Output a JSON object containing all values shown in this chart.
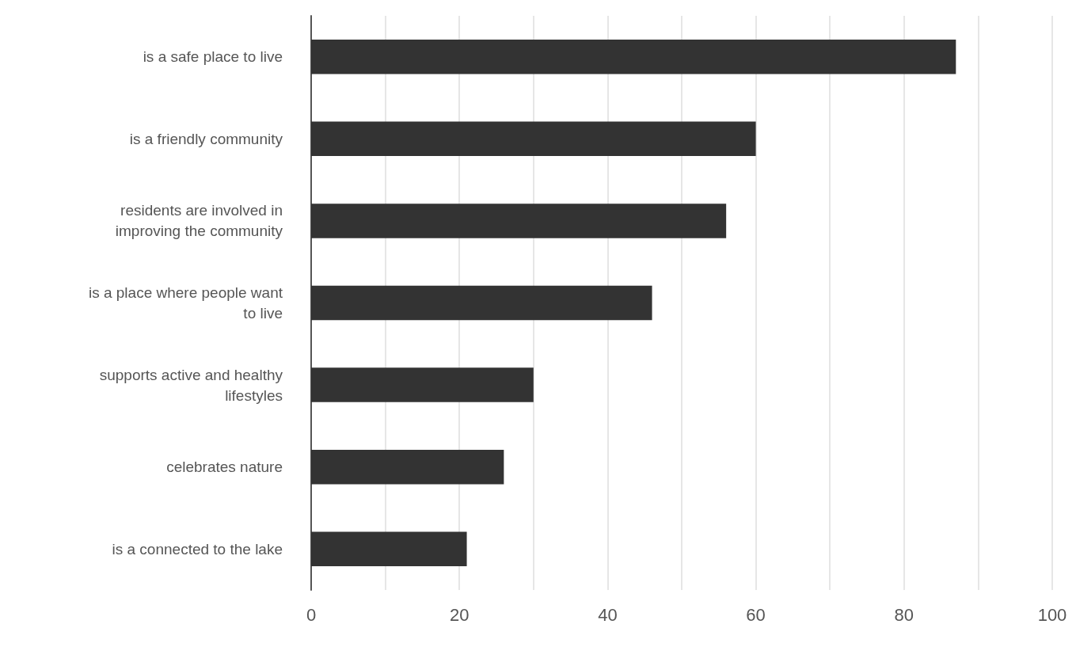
{
  "chart_data": {
    "type": "bar",
    "orientation": "horizontal",
    "categories": [
      "is a safe place to live",
      "is a friendly community",
      "residents are involved in improving the community",
      "is a place where people want to live",
      "supports active and healthy lifestyles",
      "celebrates nature",
      "is a connected to the lake"
    ],
    "values": [
      87,
      60,
      56,
      46,
      30,
      26,
      21
    ],
    "color": "#333333",
    "xlim": [
      0,
      100
    ],
    "xticks": [
      0,
      {
        "value": 10,
        "label": null
      },
      20,
      {
        "value": 30,
        "label": null
      },
      40,
      {
        "value": 50,
        "label": null
      },
      60,
      {
        "value": 70,
        "label": null
      },
      80,
      {
        "value": 90,
        "label": null
      },
      100
    ],
    "grid": "x"
  }
}
